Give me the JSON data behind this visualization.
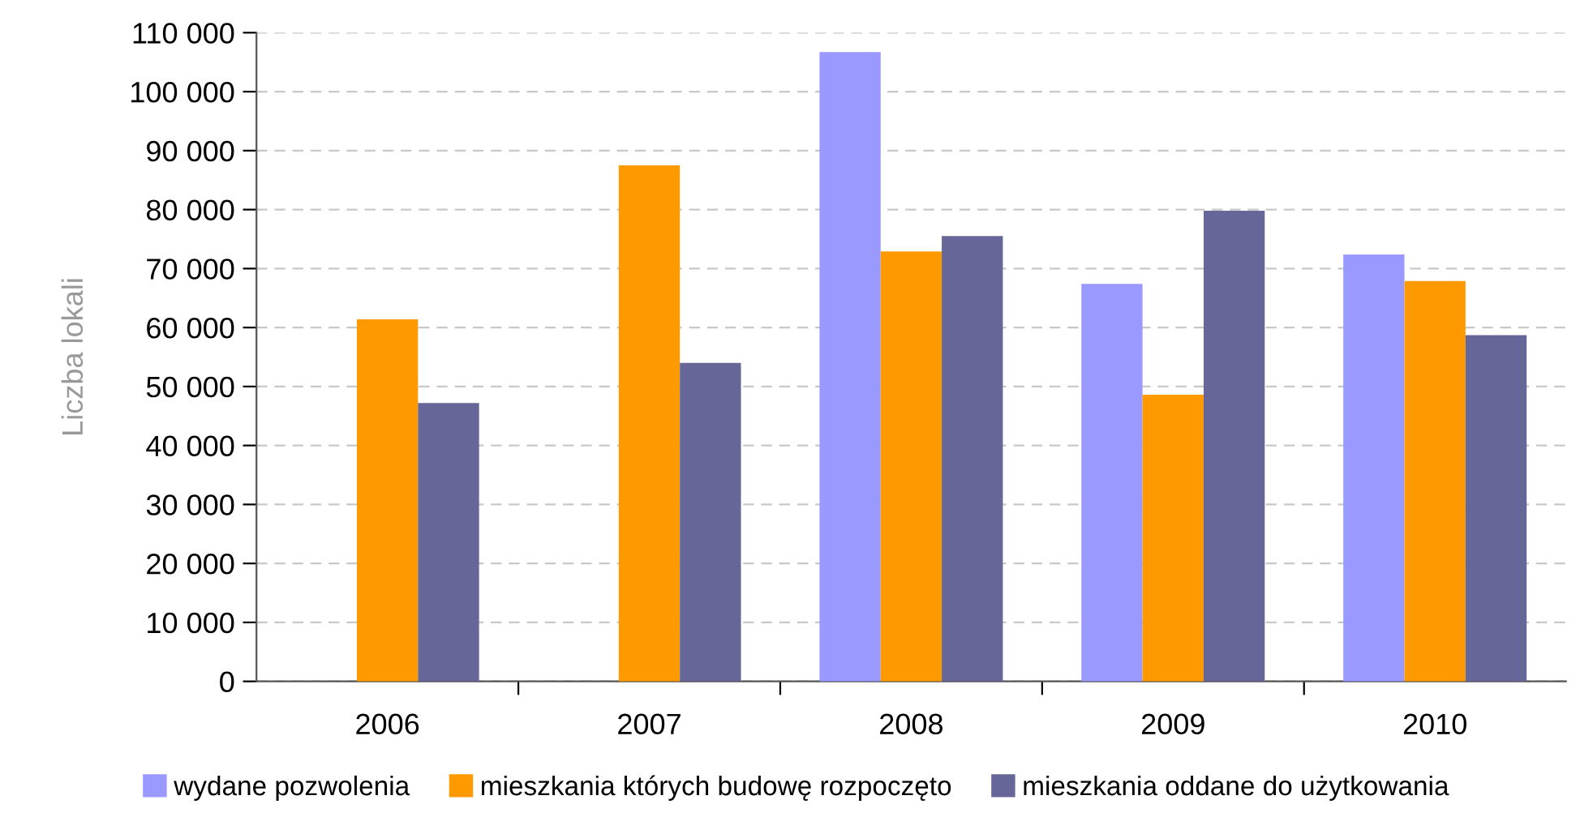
{
  "chart_data": {
    "type": "bar",
    "ylabel": "Liczba lokali",
    "categories": [
      "2006",
      "2007",
      "2008",
      "2009",
      "2010"
    ],
    "series": [
      {
        "name": "wydane pozwolenia",
        "color": "#9999ff",
        "values": [
          null,
          null,
          106700,
          67400,
          72400
        ]
      },
      {
        "name": "mieszkania których budowę rozpoczęto",
        "color": "#ff9900",
        "values": [
          61400,
          87500,
          72900,
          48600,
          67900
        ]
      },
      {
        "name": "mieszkania oddane do użytkowania",
        "color": "#666699",
        "values": [
          47200,
          54000,
          75500,
          79800,
          58700
        ]
      }
    ],
    "ylim": [
      0,
      110000
    ],
    "yticks": [
      {
        "value": 0,
        "label": "0"
      },
      {
        "value": 10000,
        "label": "10 000"
      },
      {
        "value": 20000,
        "label": "20 000"
      },
      {
        "value": 30000,
        "label": "30 000"
      },
      {
        "value": 40000,
        "label": "40 000"
      },
      {
        "value": 50000,
        "label": "50 000"
      },
      {
        "value": 60000,
        "label": "60 000"
      },
      {
        "value": 70000,
        "label": "70 000"
      },
      {
        "value": 80000,
        "label": "80 000"
      },
      {
        "value": 90000,
        "label": "90 000"
      },
      {
        "value": 100000,
        "label": "100 000"
      },
      {
        "value": 110000,
        "label": "110 000"
      }
    ],
    "grid": "y",
    "legend": "bottom"
  }
}
